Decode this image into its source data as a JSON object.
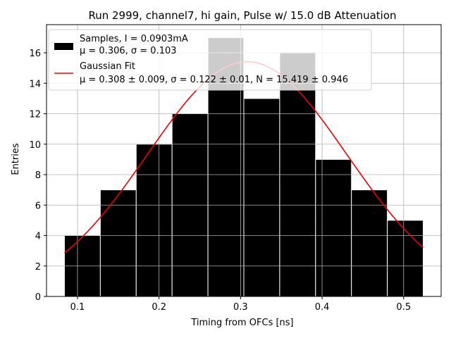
{
  "chart_data": {
    "type": "bar",
    "title": "Run 2999, channel7, hi gain, Pulse w/ 15.0 dB Attenuation",
    "xlabel": "Timing from OFCs [ns]",
    "ylabel": "Entries",
    "xlim": [
      0.062,
      0.546
    ],
    "ylim": [
      0,
      17.85
    ],
    "xticks": [
      0.1,
      0.2,
      0.3,
      0.4,
      0.5
    ],
    "xtick_labels": [
      "0.1",
      "0.2",
      "0.3",
      "0.4",
      "0.5"
    ],
    "yticks": [
      0,
      2,
      4,
      6,
      8,
      10,
      12,
      14,
      16
    ],
    "ytick_labels": [
      "0",
      "2",
      "4",
      "6",
      "8",
      "10",
      "12",
      "14",
      "16"
    ],
    "grid": true,
    "legend_position": "top-left",
    "histogram": {
      "name": "Samples, I = 0.0903mA",
      "stats_label": "μ = 0.306, σ = 0.103",
      "color": "#000000",
      "bin_edges": [
        0.084,
        0.128,
        0.172,
        0.216,
        0.26,
        0.304,
        0.348,
        0.392,
        0.436,
        0.48,
        0.524
      ],
      "values": [
        4,
        7,
        10,
        12,
        17,
        13,
        16,
        9,
        7,
        5
      ]
    },
    "fit": {
      "name": "Gaussian Fit",
      "params_label": "μ = 0.308 ± 0.009, σ = 0.122 ± 0.01, N = 15.419 ± 0.946",
      "color": "#ee0000",
      "mu": 0.308,
      "sigma": 0.122,
      "N": 15.419,
      "x_range": [
        0.084,
        0.524
      ]
    }
  }
}
